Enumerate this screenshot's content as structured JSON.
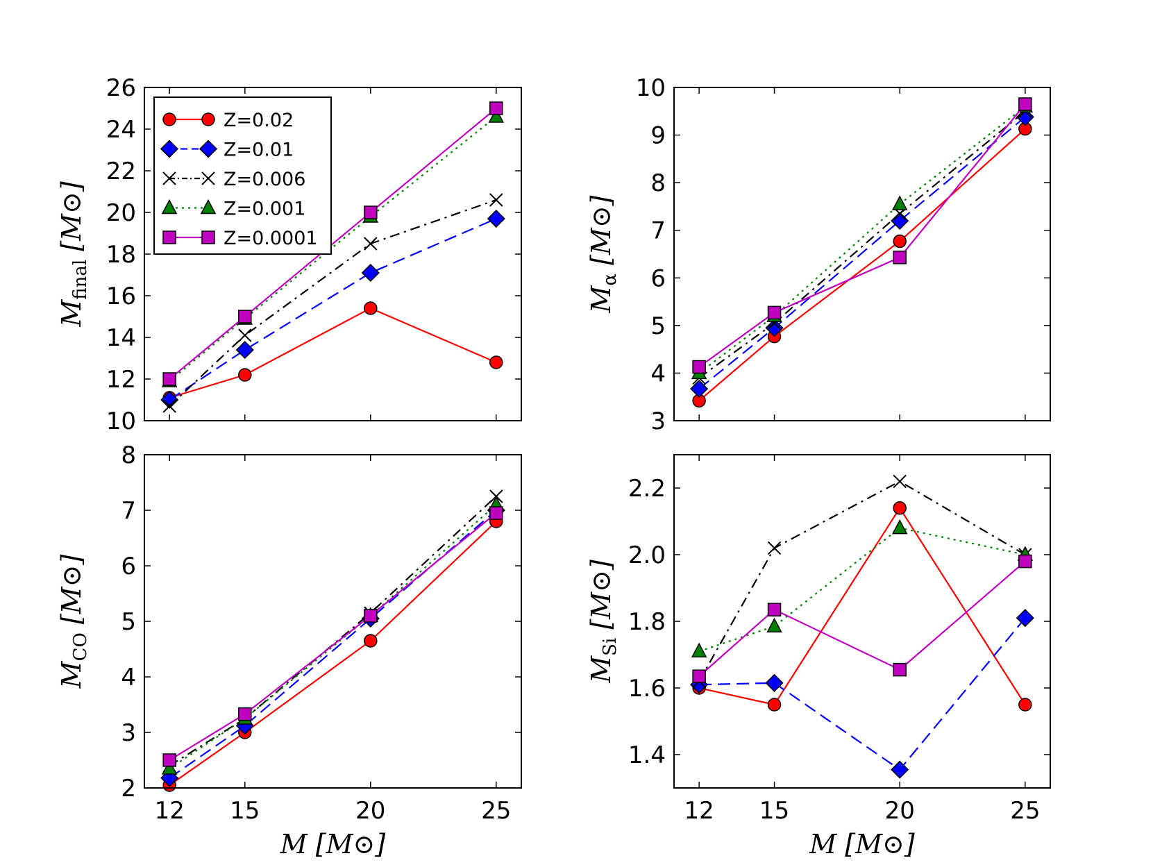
{
  "legend": [
    {
      "label": "Z=0.02"
    },
    {
      "label": "Z=0.01"
    },
    {
      "label": "Z=0.006"
    },
    {
      "label": "Z=0.001"
    },
    {
      "label": "Z=0.0001"
    }
  ],
  "styles": [
    {
      "color": "#ff0000",
      "marker": "circle",
      "dash": "none"
    },
    {
      "color": "#0000ff",
      "marker": "diamond",
      "dash": "dashed"
    },
    {
      "color": "#000000",
      "marker": "x",
      "dash": "dashdot"
    },
    {
      "color": "#008000",
      "marker": "triangle",
      "dash": "dotted"
    },
    {
      "color": "#bf00bf",
      "marker": "square",
      "dash": "none"
    }
  ],
  "chart_data": [
    {
      "type": "line",
      "id": "final",
      "xlabel": "M [M⊙]",
      "ylabel": {
        "main": "M",
        "sub": "final",
        "unit": "[M⊙]"
      },
      "x": [
        12,
        15,
        20,
        25
      ],
      "xlim": [
        11,
        26
      ],
      "ylim": [
        10,
        26
      ],
      "yticks": [
        10,
        12,
        14,
        16,
        18,
        20,
        22,
        24,
        26
      ],
      "xticks_shown": false,
      "legend": "top-left",
      "series": [
        {
          "name": "Z=0.02",
          "values": [
            11.1,
            12.2,
            15.4,
            12.8
          ]
        },
        {
          "name": "Z=0.01",
          "values": [
            11.0,
            13.4,
            17.1,
            19.7
          ]
        },
        {
          "name": "Z=0.006",
          "values": [
            10.7,
            14.1,
            18.5,
            20.6
          ]
        },
        {
          "name": "Z=0.001",
          "values": [
            11.9,
            14.9,
            19.8,
            24.6
          ]
        },
        {
          "name": "Z=0.0001",
          "values": [
            12.0,
            15.0,
            20.0,
            25.0
          ]
        }
      ]
    },
    {
      "type": "line",
      "id": "alpha",
      "xlabel": "",
      "ylabel": {
        "main": "M",
        "sub": "α",
        "unit": "[M⊙]"
      },
      "x": [
        12,
        15,
        20,
        25
      ],
      "xlim": [
        11,
        26
      ],
      "ylim": [
        3,
        10
      ],
      "yticks": [
        3,
        4,
        5,
        6,
        7,
        8,
        9,
        10
      ],
      "xticks_shown": false,
      "series": [
        {
          "name": "Z=0.02",
          "values": [
            3.42,
            4.77,
            6.77,
            9.13
          ]
        },
        {
          "name": "Z=0.01",
          "values": [
            3.67,
            4.95,
            7.2,
            9.38
          ]
        },
        {
          "name": "Z=0.006",
          "values": [
            3.9,
            5.05,
            7.35,
            9.5
          ]
        },
        {
          "name": "Z=0.001",
          "values": [
            4.0,
            5.2,
            7.55,
            9.6
          ]
        },
        {
          "name": "Z=0.0001",
          "values": [
            4.13,
            5.27,
            6.43,
            9.65
          ]
        }
      ]
    },
    {
      "type": "line",
      "id": "co",
      "xlabel": "M [M⊙]",
      "ylabel": {
        "main": "M",
        "sub": "CO",
        "unit": "[M⊙]"
      },
      "x": [
        12,
        15,
        20,
        25
      ],
      "xlim": [
        11,
        26
      ],
      "ylim": [
        2,
        8
      ],
      "yticks": [
        2,
        3,
        4,
        5,
        6,
        7,
        8
      ],
      "xticks_shown": true,
      "xticks": [
        12,
        15,
        20,
        25
      ],
      "series": [
        {
          "name": "Z=0.02",
          "values": [
            2.05,
            3.0,
            4.65,
            6.8
          ]
        },
        {
          "name": "Z=0.01",
          "values": [
            2.18,
            3.12,
            5.05,
            7.0
          ]
        },
        {
          "name": "Z=0.006",
          "values": [
            2.4,
            3.25,
            5.15,
            7.25
          ]
        },
        {
          "name": "Z=0.001",
          "values": [
            2.35,
            3.25,
            5.1,
            7.1
          ]
        },
        {
          "name": "Z=0.0001",
          "values": [
            2.5,
            3.33,
            5.1,
            6.95
          ]
        }
      ]
    },
    {
      "type": "line",
      "id": "si",
      "xlabel": "M [M⊙]",
      "ylabel": {
        "main": "M",
        "sub": "Si",
        "unit": "[M⊙]"
      },
      "x": [
        12,
        15,
        20,
        25
      ],
      "xlim": [
        11,
        26
      ],
      "ylim": [
        1.3,
        2.3
      ],
      "yticks": [
        1.4,
        1.6,
        1.8,
        2.0,
        2.2
      ],
      "xticks_shown": true,
      "xticks": [
        12,
        15,
        20,
        25
      ],
      "series": [
        {
          "name": "Z=0.02",
          "values": [
            1.6,
            1.55,
            2.14,
            1.55
          ]
        },
        {
          "name": "Z=0.01",
          "values": [
            1.61,
            1.615,
            1.355,
            1.81
          ]
        },
        {
          "name": "Z=0.006",
          "values": [
            1.62,
            2.02,
            2.22,
            2.0
          ]
        },
        {
          "name": "Z=0.001",
          "values": [
            1.71,
            1.785,
            2.08,
            2.0
          ]
        },
        {
          "name": "Z=0.0001",
          "values": [
            1.635,
            1.835,
            1.655,
            1.98
          ]
        }
      ]
    }
  ]
}
